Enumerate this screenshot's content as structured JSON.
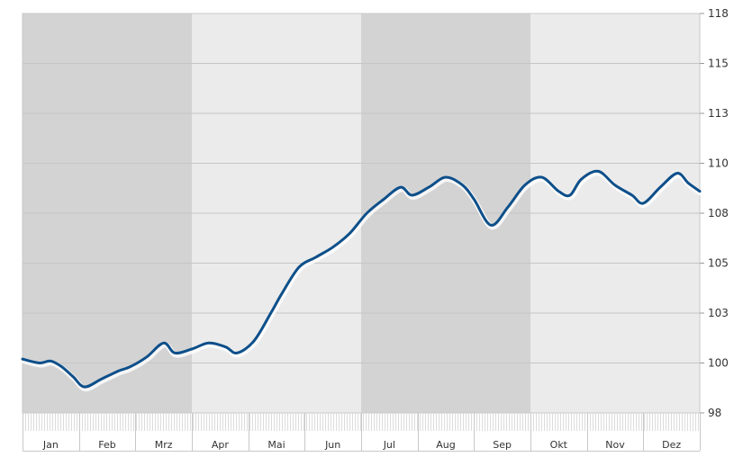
{
  "chart_data": {
    "type": "line",
    "title": "",
    "xlabel": "",
    "ylabel": "",
    "months": [
      "Jan",
      "Feb",
      "Mrz",
      "Apr",
      "Mai",
      "Jun",
      "Jul",
      "Aug",
      "Sep",
      "Okt",
      "Nov",
      "Dez"
    ],
    "yticks": [
      "98",
      "100",
      "103",
      "105",
      "108",
      "110",
      "113",
      "115",
      "118"
    ],
    "ylim": [
      97.5,
      117.5
    ],
    "grid": true,
    "series": [
      {
        "color": "#0d4f8a",
        "x": [
          0,
          0.3,
          0.5,
          0.7,
          0.9,
          1.1,
          1.4,
          1.7,
          1.9,
          2.2,
          2.5,
          2.7,
          3.0,
          3.3,
          3.6,
          3.8,
          4.1,
          4.4,
          4.6,
          4.9,
          5.2,
          5.5,
          5.8,
          6.1,
          6.4,
          6.7,
          6.9,
          7.2,
          7.5,
          7.8,
          8.0,
          8.3,
          8.6,
          8.9,
          9.2,
          9.5,
          9.7,
          9.9,
          10.2,
          10.5,
          10.8,
          11.0,
          11.3,
          11.6,
          11.8,
          12.0
        ],
        "values": [
          100.2,
          100.0,
          100.1,
          99.8,
          99.3,
          98.8,
          99.2,
          99.6,
          99.8,
          100.3,
          101.0,
          100.5,
          100.7,
          101.0,
          100.8,
          100.5,
          101.1,
          102.5,
          103.5,
          104.8,
          105.3,
          105.8,
          106.5,
          107.5,
          108.2,
          108.8,
          108.4,
          108.8,
          109.3,
          108.9,
          108.2,
          106.9,
          107.8,
          108.9,
          109.3,
          108.6,
          108.4,
          109.2,
          109.6,
          108.9,
          108.4,
          108.0,
          108.8,
          109.5,
          109.0,
          108.6
        ]
      }
    ]
  }
}
